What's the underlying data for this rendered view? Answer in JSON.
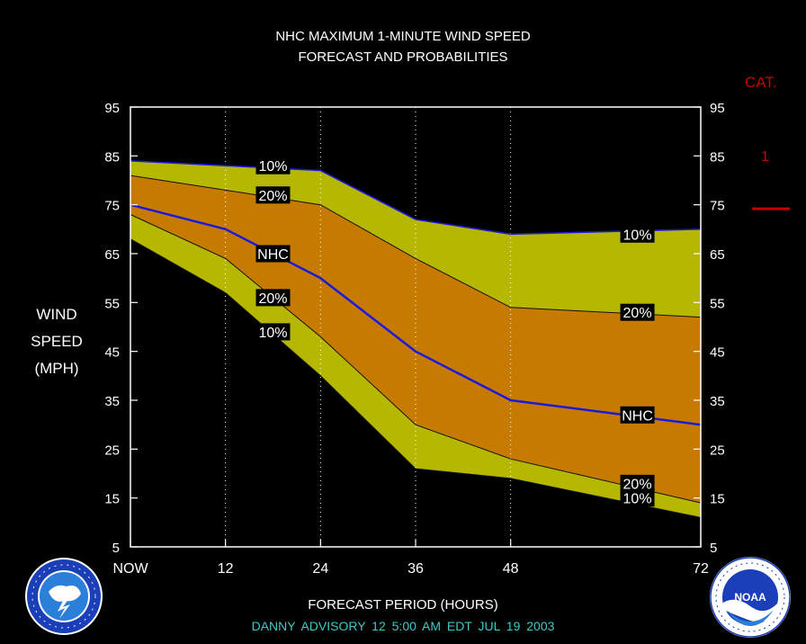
{
  "title_line1": "NHC MAXIMUM 1-MINUTE WIND SPEED",
  "title_line2": "FORECAST AND PROBABILITIES",
  "ylabel_lines": [
    "WIND",
    "SPEED",
    "(MPH)"
  ],
  "xlabel": "FORECAST PERIOD (HOURS)",
  "advisory": "DANNY   ADVISORY  12 5:00 AM EDT JUL 19 2003",
  "category": {
    "header": "CAT.",
    "labels": [
      {
        "text": "1",
        "y": 79
      }
    ],
    "threshold_mph": [
      74
    ],
    "color": "#c80000"
  },
  "logos": {
    "left": "nws-logo",
    "right": "noaa-logo",
    "right_text": "NOAA"
  },
  "chart_data": {
    "type": "area",
    "x": [
      0,
      12,
      24,
      36,
      48,
      72
    ],
    "x_tick_labels": [
      "NOW",
      "12",
      "24",
      "36",
      "48",
      "72"
    ],
    "y_ticks": [
      5,
      15,
      25,
      35,
      45,
      55,
      65,
      75,
      85,
      95
    ],
    "xlim": [
      0,
      72
    ],
    "ylim": [
      5,
      95
    ],
    "grid": "vertical dotted at 12, 24, 36, 48",
    "series": [
      {
        "name": "10%",
        "values": [
          84,
          83,
          82,
          72,
          69,
          70
        ]
      },
      {
        "name": "20%",
        "values": [
          81,
          78,
          75,
          64,
          54,
          52
        ]
      },
      {
        "name": "NHC",
        "values": [
          75,
          70,
          60,
          45,
          35,
          30
        ]
      },
      {
        "name": "20%",
        "values": [
          73,
          64,
          48,
          30,
          23,
          14
        ]
      },
      {
        "name": "10%",
        "values": [
          68,
          57,
          40,
          21,
          19,
          11
        ]
      }
    ],
    "annotations": [
      {
        "text": "10%",
        "x": 18,
        "y": 83
      },
      {
        "text": "20%",
        "x": 18,
        "y": 77
      },
      {
        "text": "NHC",
        "x": 18,
        "y": 65
      },
      {
        "text": "20%",
        "x": 18,
        "y": 56
      },
      {
        "text": "10%",
        "x": 18,
        "y": 49
      },
      {
        "text": "10%",
        "x": 64,
        "y": 69
      },
      {
        "text": "20%",
        "x": 64,
        "y": 53
      },
      {
        "text": "NHC",
        "x": 64,
        "y": 32
      },
      {
        "text": "20%",
        "x": 64,
        "y": 18
      },
      {
        "text": "10%",
        "x": 64,
        "y": 15
      }
    ],
    "colors": {
      "outer_band": "#b5b700",
      "inner_band": "#c67a00",
      "nhc_line": "#1a1adc",
      "edge_line": "#101010",
      "background": "#000000",
      "frame": "#ffffff"
    }
  }
}
